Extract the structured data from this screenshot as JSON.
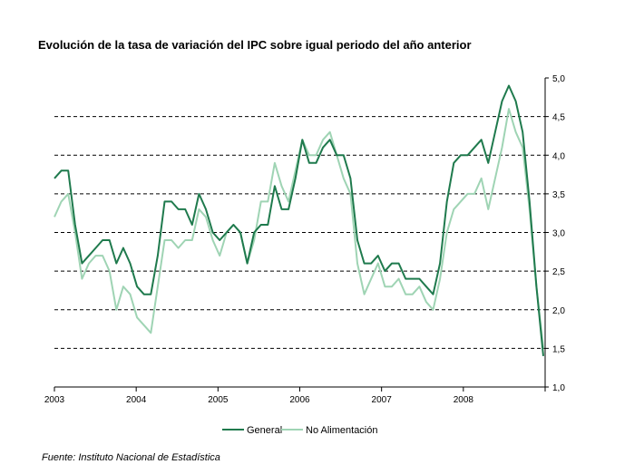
{
  "chart_data": {
    "type": "line",
    "title": "Evolución de la tasa de variación del IPC sobre igual  periodo del año anterior",
    "source": "Fuente: Instituto Nacional de Estadística",
    "xlabel": "",
    "ylabel": "",
    "x_ticks": [
      "2003",
      "2004",
      "2005",
      "2006",
      "2007",
      "2008"
    ],
    "y_ticks": [
      "5,0",
      "4,5",
      "4,0",
      "3,5",
      "3,0",
      "2,5",
      "2,0",
      "1,5",
      "1,0"
    ],
    "ylim": [
      1.0,
      5.0
    ],
    "y_axis_side": "right",
    "grid": "dashed horizontal",
    "legend_position": "bottom-center",
    "x": [
      "2003-01",
      "2003-02",
      "2003-03",
      "2003-04",
      "2003-05",
      "2003-06",
      "2003-07",
      "2003-08",
      "2003-09",
      "2003-10",
      "2003-11",
      "2003-12",
      "2004-01",
      "2004-02",
      "2004-03",
      "2004-04",
      "2004-05",
      "2004-06",
      "2004-07",
      "2004-08",
      "2004-09",
      "2004-10",
      "2004-11",
      "2004-12",
      "2005-01",
      "2005-02",
      "2005-03",
      "2005-04",
      "2005-05",
      "2005-06",
      "2005-07",
      "2005-08",
      "2005-09",
      "2005-10",
      "2005-11",
      "2005-12",
      "2006-01",
      "2006-02",
      "2006-03",
      "2006-04",
      "2006-05",
      "2006-06",
      "2006-07",
      "2006-08",
      "2006-09",
      "2006-10",
      "2006-11",
      "2006-12",
      "2007-01",
      "2007-02",
      "2007-03",
      "2007-04",
      "2007-05",
      "2007-06",
      "2007-07",
      "2007-08",
      "2007-09",
      "2007-10",
      "2007-11",
      "2007-12",
      "2008-01",
      "2008-02",
      "2008-03",
      "2008-04",
      "2008-05",
      "2008-06",
      "2008-07",
      "2008-08",
      "2008-09",
      "2008-10",
      "2008-11",
      "2008-12"
    ],
    "series": [
      {
        "name": "General",
        "color": "#1f7a4d",
        "values": [
          3.7,
          3.8,
          3.8,
          3.1,
          2.6,
          2.7,
          2.8,
          2.9,
          2.9,
          2.6,
          2.8,
          2.6,
          2.3,
          2.2,
          2.2,
          2.7,
          3.4,
          3.4,
          3.3,
          3.3,
          3.1,
          3.5,
          3.3,
          3.0,
          2.9,
          3.0,
          3.1,
          3.0,
          2.6,
          3.0,
          3.1,
          3.1,
          3.6,
          3.3,
          3.3,
          3.7,
          4.2,
          3.9,
          3.9,
          4.1,
          4.2,
          4.0,
          4.0,
          3.7,
          2.9,
          2.6,
          2.6,
          2.7,
          2.5,
          2.6,
          2.6,
          2.4,
          2.4,
          2.4,
          2.3,
          2.2,
          2.6,
          3.4,
          3.9,
          4.0,
          4.0,
          4.1,
          4.2,
          3.9,
          4.3,
          4.7,
          4.9,
          4.7,
          4.3,
          3.4,
          2.3,
          1.4
        ]
      },
      {
        "name": "No Alimentación",
        "color": "#9fd4b4",
        "values": [
          3.2,
          3.4,
          3.5,
          3.0,
          2.4,
          2.6,
          2.7,
          2.7,
          2.5,
          2.0,
          2.3,
          2.2,
          1.9,
          1.8,
          1.7,
          2.3,
          2.9,
          2.9,
          2.8,
          2.9,
          2.9,
          3.3,
          3.2,
          2.9,
          2.7,
          3.0,
          3.1,
          3.0,
          2.6,
          2.9,
          3.4,
          3.4,
          3.9,
          3.6,
          3.4,
          3.8,
          4.2,
          4.0,
          4.0,
          4.2,
          4.3,
          4.0,
          3.7,
          3.5,
          2.6,
          2.2,
          2.4,
          2.6,
          2.3,
          2.3,
          2.4,
          2.2,
          2.2,
          2.3,
          2.1,
          2.0,
          2.4,
          3.0,
          3.3,
          3.4,
          3.5,
          3.5,
          3.7,
          3.3,
          3.7,
          4.1,
          4.6,
          4.3,
          4.1,
          3.3,
          2.3,
          1.5
        ]
      }
    ]
  }
}
